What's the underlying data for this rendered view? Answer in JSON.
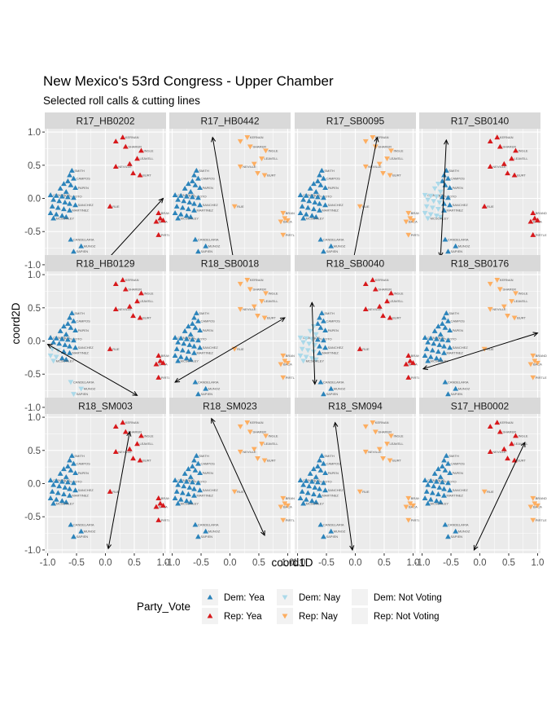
{
  "chart_data": {
    "type": "scatter",
    "title": "New Mexico's 53rd Congress - Upper Chamber",
    "subtitle": "Selected roll calls & cutting lines",
    "xlabel": "coord1D",
    "ylabel": "coord2D",
    "xlim": [
      -1.05,
      1.05
    ],
    "ylim": [
      -1.05,
      1.05
    ],
    "x_ticks": [
      "-1.0",
      "-0.5",
      "0.0",
      "0.5",
      "1.0"
    ],
    "x_tick_values": [
      -1.0,
      -0.5,
      0.0,
      0.5,
      1.0
    ],
    "y_ticks": [
      "1.0",
      "0.5",
      "0.0",
      "-0.5",
      "-1.0"
    ],
    "y_tick_values": [
      1.0,
      0.5,
      0.0,
      -0.5,
      -1.0
    ],
    "grid": true,
    "legend": {
      "title": "Party_Vote",
      "position": "bottom",
      "entries": [
        {
          "key": "dem_yea",
          "label": "Dem: Yea"
        },
        {
          "key": "rep_yea",
          "label": "Rep: Yea"
        },
        {
          "key": "dem_nay",
          "label": "Dem: Nay"
        },
        {
          "key": "rep_nay",
          "label": "Rep: Nay"
        },
        {
          "key": "dem_nv",
          "label": "Dem: Not Voting"
        },
        {
          "key": "rep_nv",
          "label": "Rep: Not Voting"
        }
      ]
    },
    "colors": {
      "dem_yea": "#2b83ba",
      "dem_nay": "#abd9e9",
      "rep_yea": "#d7191c",
      "rep_nay": "#fdae61",
      "dem_nv": "#f2f2f2",
      "rep_nv": "#f2f2f2",
      "panel_bg": "#ebebeb",
      "strip_bg": "#d9d9d9",
      "grid": "#ffffff"
    },
    "legislators": [
      {
        "party": "D",
        "x": -0.58,
        "y": 0.42,
        "label": "SMITH"
      },
      {
        "party": "D",
        "x": -0.62,
        "y": 0.35,
        "label": ""
      },
      {
        "party": "D",
        "x": -0.55,
        "y": 0.3,
        "label": "CAMPOS"
      },
      {
        "party": "D",
        "x": -0.65,
        "y": 0.26,
        "label": ""
      },
      {
        "party": "D",
        "x": -0.72,
        "y": 0.22,
        "label": ""
      },
      {
        "party": "D",
        "x": -0.6,
        "y": 0.2,
        "label": ""
      },
      {
        "party": "D",
        "x": -0.52,
        "y": 0.16,
        "label": "PAPEN"
      },
      {
        "party": "D",
        "x": -0.78,
        "y": 0.15,
        "label": ""
      },
      {
        "party": "D",
        "x": -0.68,
        "y": 0.1,
        "label": ""
      },
      {
        "party": "D",
        "x": -0.95,
        "y": 0.05,
        "label": "CISNEROS"
      },
      {
        "party": "D",
        "x": -0.85,
        "y": 0.04,
        "label": ""
      },
      {
        "party": "D",
        "x": -0.75,
        "y": 0.03,
        "label": "IVEY-SOTO"
      },
      {
        "party": "D",
        "x": -0.65,
        "y": 0.02,
        "label": ""
      },
      {
        "party": "D",
        "x": -0.55,
        "y": 0.01,
        "label": ""
      },
      {
        "party": "D",
        "x": -0.9,
        "y": -0.02,
        "label": ""
      },
      {
        "party": "D",
        "x": -0.8,
        "y": -0.04,
        "label": ""
      },
      {
        "party": "D",
        "x": -0.7,
        "y": -0.06,
        "label": ""
      },
      {
        "party": "D",
        "x": -0.62,
        "y": -0.08,
        "label": ""
      },
      {
        "party": "D",
        "x": -0.52,
        "y": -0.1,
        "label": "SANCHEZ"
      },
      {
        "party": "D",
        "x": -0.92,
        "y": -0.12,
        "label": ""
      },
      {
        "party": "D",
        "x": -0.82,
        "y": -0.14,
        "label": ""
      },
      {
        "party": "D",
        "x": -0.72,
        "y": -0.16,
        "label": ""
      },
      {
        "party": "D",
        "x": -0.62,
        "y": -0.18,
        "label": "MARTINEZ"
      },
      {
        "party": "D",
        "x": -0.95,
        "y": -0.22,
        "label": ""
      },
      {
        "party": "D",
        "x": -0.85,
        "y": -0.24,
        "label": ""
      },
      {
        "party": "D",
        "x": -0.75,
        "y": -0.26,
        "label": ""
      },
      {
        "party": "D",
        "x": -0.68,
        "y": -0.28,
        "label": ""
      },
      {
        "party": "D",
        "x": -0.9,
        "y": -0.3,
        "label": "MCSORLEY"
      },
      {
        "party": "D",
        "x": -0.6,
        "y": -0.62,
        "label": "CANDELARIA"
      },
      {
        "party": "D",
        "x": -0.42,
        "y": -0.72,
        "label": "MUNOZ"
      },
      {
        "party": "D",
        "x": -0.55,
        "y": -0.8,
        "label": "SAPIEN"
      },
      {
        "party": "R",
        "x": 0.3,
        "y": 0.92,
        "label": "KERNAN"
      },
      {
        "party": "R",
        "x": 0.18,
        "y": 0.86,
        "label": ""
      },
      {
        "party": "R",
        "x": 0.35,
        "y": 0.78,
        "label": "SHARER"
      },
      {
        "party": "R",
        "x": 0.62,
        "y": 0.72,
        "label": "INGLE"
      },
      {
        "party": "R",
        "x": 0.55,
        "y": 0.6,
        "label": "LEAVELL"
      },
      {
        "party": "R",
        "x": 0.42,
        "y": 0.52,
        "label": ""
      },
      {
        "party": "R",
        "x": 0.18,
        "y": 0.48,
        "label": "NEVILLE"
      },
      {
        "party": "R",
        "x": 0.48,
        "y": 0.38,
        "label": ""
      },
      {
        "party": "R",
        "x": 0.6,
        "y": 0.35,
        "label": "BURT"
      },
      {
        "party": "R",
        "x": 0.08,
        "y": -0.12,
        "label": "RUE"
      },
      {
        "party": "R",
        "x": 0.92,
        "y": -0.22,
        "label": "BRANDT"
      },
      {
        "party": "R",
        "x": 0.95,
        "y": -0.3,
        "label": ""
      },
      {
        "party": "R",
        "x": 0.88,
        "y": -0.35,
        "label": "BACA"
      },
      {
        "party": "R",
        "x": 1.0,
        "y": -0.33,
        "label": ""
      },
      {
        "party": "R",
        "x": 0.92,
        "y": -0.55,
        "label": "PIRTLE"
      }
    ],
    "panels": [
      {
        "name": "R17_HB0202",
        "cut": [
          [
            -0.05,
            -1.0
          ],
          [
            1.0,
            0.0
          ]
        ],
        "mode": "all_yea"
      },
      {
        "name": "R17_HB0442",
        "cut": [
          [
            -0.3,
            0.92
          ],
          [
            0.08,
            -1.02
          ]
        ],
        "mode": "dem_yea_rep_nay"
      },
      {
        "name": "R17_SB0095",
        "cut": [
          [
            0.38,
            0.92
          ],
          [
            -0.05,
            -1.0
          ]
        ],
        "mode": "dem_yea_rep_nay"
      },
      {
        "name": "R17_SB0140",
        "cut": [
          [
            -0.68,
            -0.88
          ],
          [
            -0.58,
            0.88
          ]
        ],
        "mode": "split_left"
      },
      {
        "name": "R18_HB0129",
        "cut": [
          [
            -1.0,
            -0.05
          ],
          [
            0.55,
            -0.82
          ]
        ],
        "mode": "dem_nay_partial"
      },
      {
        "name": "R18_SB0018",
        "cut": [
          [
            -0.95,
            -0.62
          ],
          [
            0.95,
            0.35
          ]
        ],
        "mode": "dem_yea_rep_nay"
      },
      {
        "name": "R18_SB0040",
        "cut": [
          [
            -0.75,
            0.58
          ],
          [
            -0.7,
            -0.65
          ]
        ],
        "mode": "split_left"
      },
      {
        "name": "R18_SB0176",
        "cut": [
          [
            -0.98,
            -0.42
          ],
          [
            1.0,
            0.12
          ]
        ],
        "mode": "dem_yea_rep_nay"
      },
      {
        "name": "R18_SM003",
        "cut": [
          [
            0.42,
            0.78
          ],
          [
            0.05,
            -0.98
          ]
        ],
        "mode": "all_yea"
      },
      {
        "name": "R18_SM023",
        "cut": [
          [
            -0.32,
            0.98
          ],
          [
            0.6,
            -0.78
          ]
        ],
        "mode": "dem_yea_rep_nay"
      },
      {
        "name": "R18_SM094",
        "cut": [
          [
            -0.05,
            -1.0
          ],
          [
            -0.35,
            0.92
          ]
        ],
        "mode": "dem_yea_rep_nay"
      },
      {
        "name": "S17_HB0002",
        "cut": [
          [
            0.78,
            0.62
          ],
          [
            -0.1,
            -1.0
          ]
        ],
        "mode": "all_yea_rep_partial"
      }
    ]
  }
}
